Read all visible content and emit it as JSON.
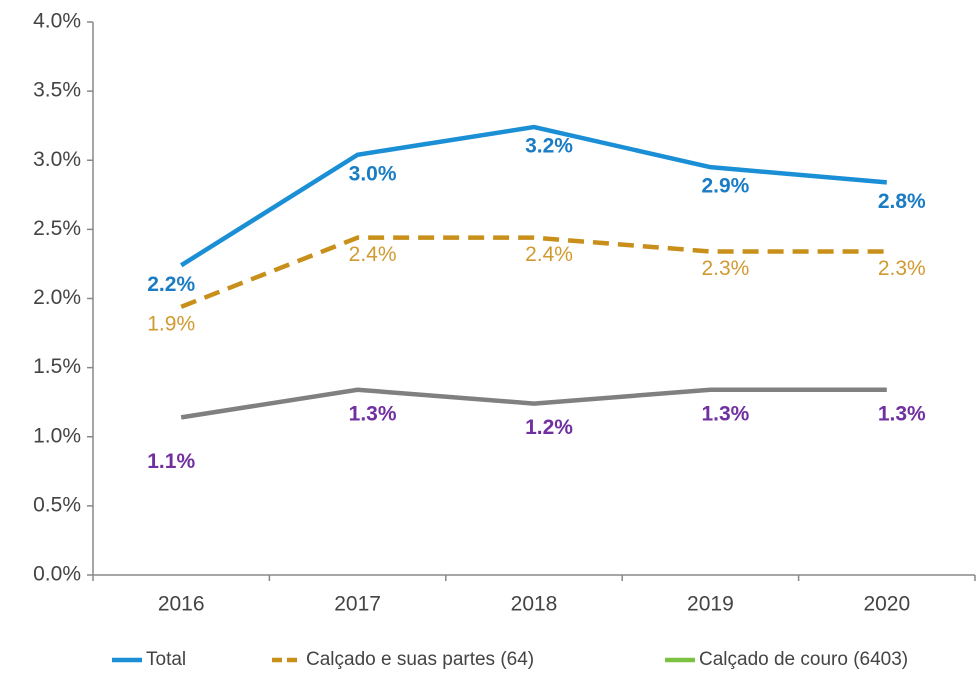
{
  "chart_data": {
    "type": "line",
    "categories": [
      "2016",
      "2017",
      "2018",
      "2019",
      "2020"
    ],
    "series": [
      {
        "name": "Total",
        "color": "#1a8fd6",
        "label_color": "#1a7cc4",
        "dash": false,
        "values": [
          2.24,
          3.04,
          3.24,
          2.95,
          2.84
        ],
        "value_labels": [
          "2.2%",
          "3.0%",
          "3.2%",
          "2.9%",
          "2.8%"
        ]
      },
      {
        "name": "Calçado e suas partes (64)",
        "color": "#c8901a",
        "label_color": "#d09a30",
        "dash": true,
        "values": [
          1.94,
          2.44,
          2.44,
          2.34,
          2.34
        ],
        "value_labels": [
          "1.9%",
          "2.4%",
          "2.4%",
          "2.3%",
          "2.3%"
        ]
      },
      {
        "name": "Calçado de couro (6403)",
        "color": "#808080",
        "legend_color": "#7cc242",
        "label_color": "#7030a0",
        "dash": false,
        "values": [
          1.14,
          1.34,
          1.24,
          1.34,
          1.34
        ],
        "value_labels": [
          "1.1%",
          "1.3%",
          "1.2%",
          "1.3%",
          "1.3%"
        ]
      }
    ],
    "ylim": [
      0,
      4
    ],
    "yticks": [
      {
        "value": 0,
        "label": "0.0%"
      },
      {
        "value": 0.5,
        "label": "0.5%"
      },
      {
        "value": 1,
        "label": "1.0%"
      },
      {
        "value": 1.5,
        "label": "1.5%"
      },
      {
        "value": 2,
        "label": "2.0%"
      },
      {
        "value": 2.5,
        "label": "2.5%"
      },
      {
        "value": 3,
        "label": "3.0%"
      },
      {
        "value": 3.5,
        "label": "3.5%"
      },
      {
        "value": 4,
        "label": "4.0%"
      }
    ],
    "legend": "bottom"
  }
}
